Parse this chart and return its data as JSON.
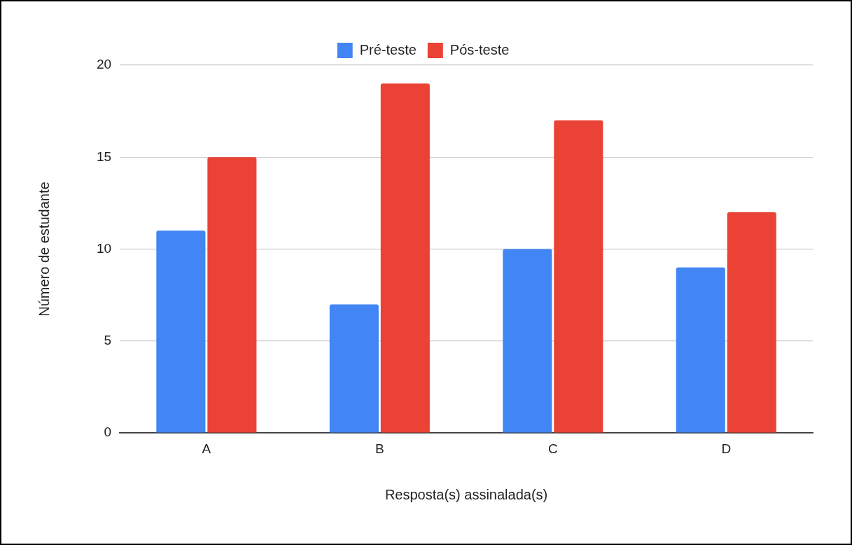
{
  "chart_data": {
    "type": "bar",
    "xlabel": "Resposta(s) assinalada(s)",
    "ylabel": "Número de estudante",
    "categories": [
      "A",
      "B",
      "C",
      "D"
    ],
    "series": [
      {
        "name": "Pré-teste",
        "color": "#4285f4",
        "values": [
          11,
          7,
          10,
          9
        ]
      },
      {
        "name": "Pós-teste",
        "color": "#ea4335",
        "values": [
          15,
          19,
          17,
          12
        ]
      }
    ],
    "ylim": [
      0,
      20
    ],
    "yticks": [
      0,
      5,
      10,
      15,
      20
    ],
    "grid": "y",
    "legend": "top"
  }
}
